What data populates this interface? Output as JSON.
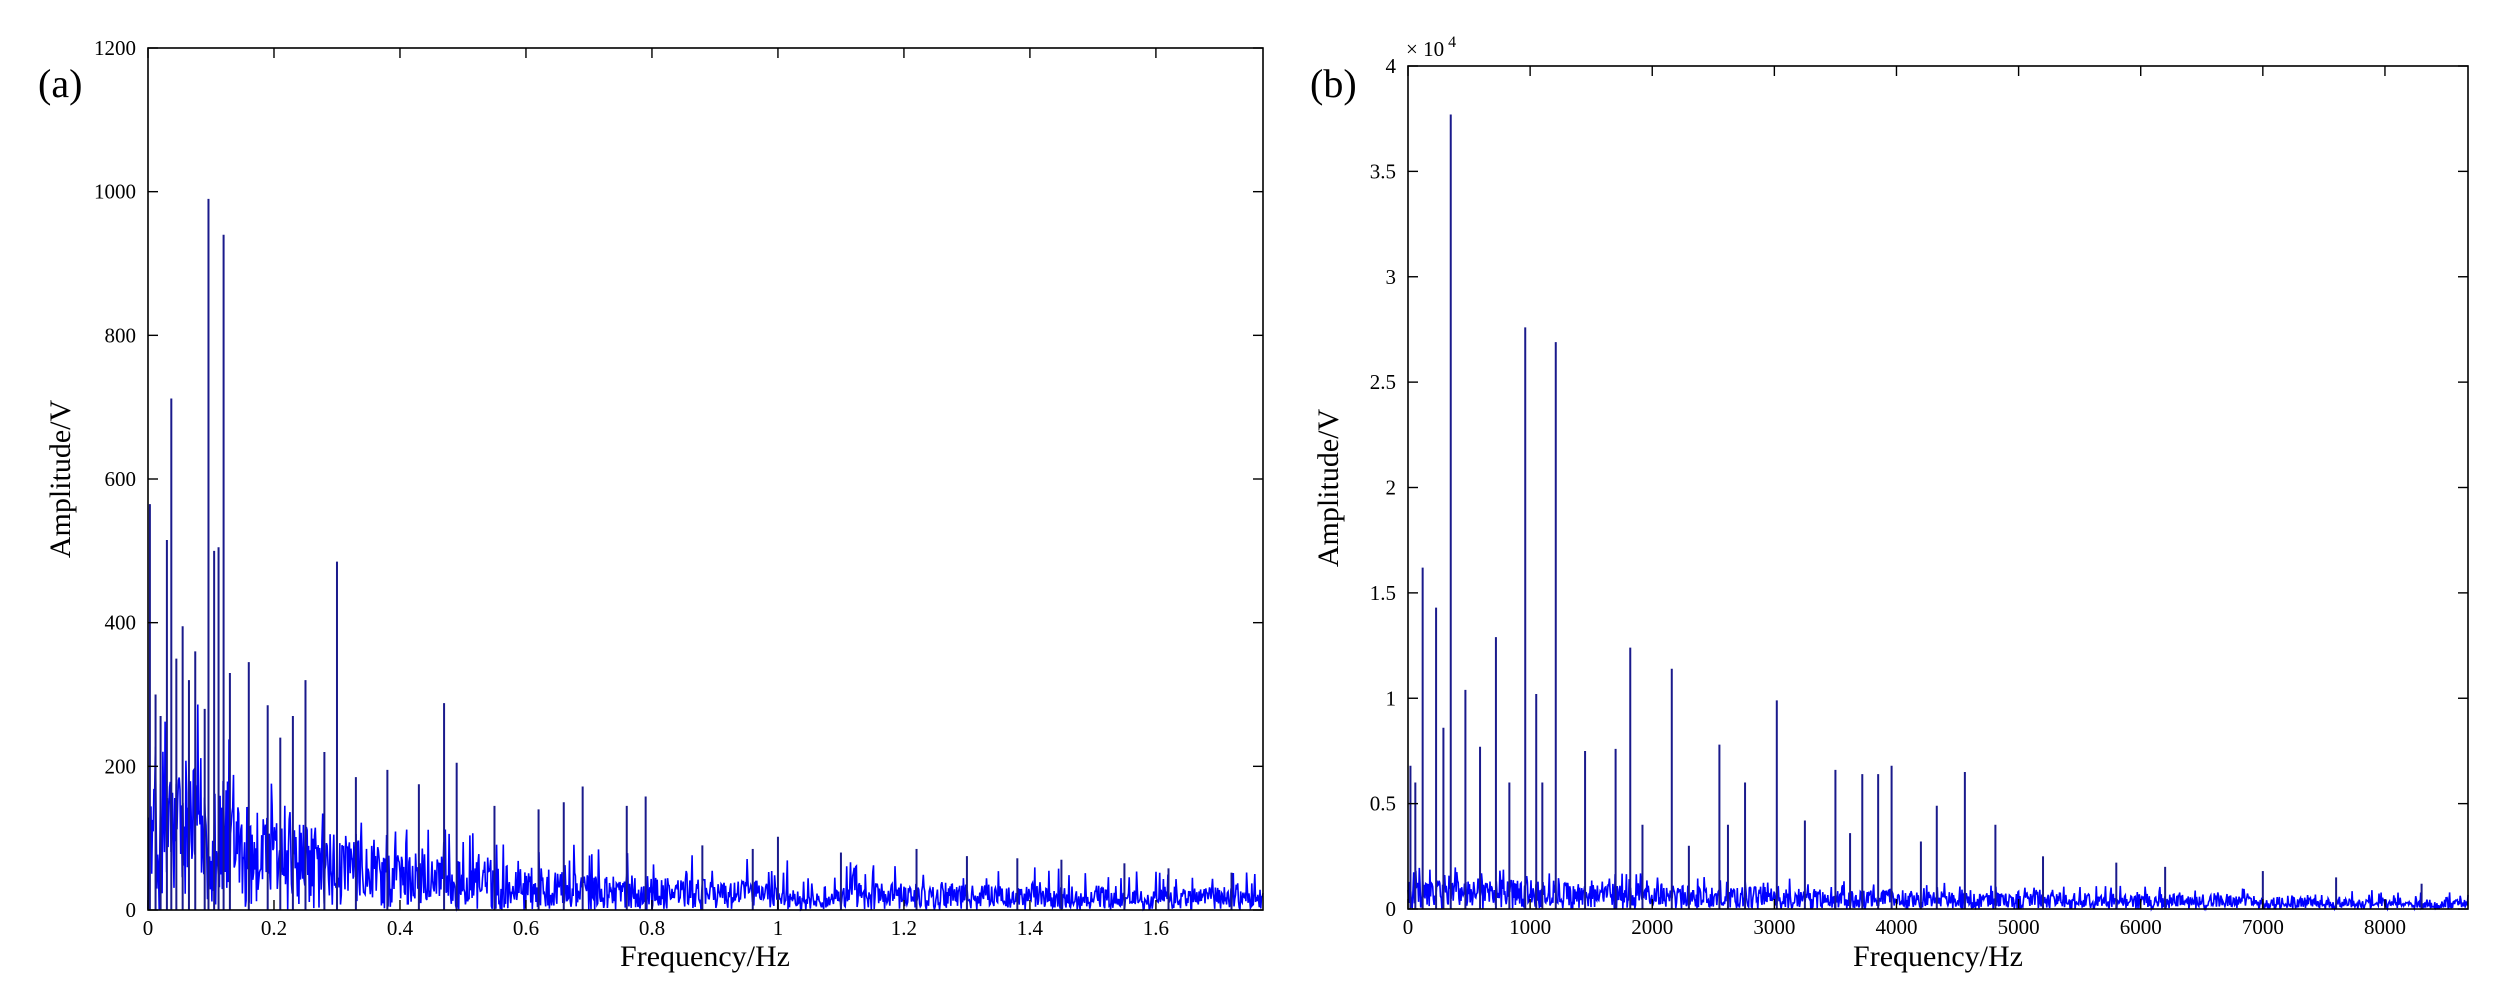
{
  "chart_data": [
    {
      "type": "line",
      "panel_label": "(a)",
      "xlabel": "Frequency/Hz",
      "ylabel": "Amplitude/V",
      "xlim": [
        0,
        1.77
      ],
      "ylim": [
        0,
        1200
      ],
      "xticks": [
        0,
        0.2,
        0.4,
        0.6,
        0.8,
        1,
        1.2,
        1.4,
        1.6
      ],
      "xtick_labels": [
        "0",
        "0.2",
        "0.4",
        "0.6",
        "0.8",
        "1",
        "1.2",
        "1.4",
        "1.6"
      ],
      "yticks": [
        0,
        200,
        400,
        600,
        800,
        1000,
        1200
      ],
      "ytick_labels": [
        "0",
        "200",
        "400",
        "600",
        "800",
        "1000",
        "1200"
      ],
      "grid": false,
      "line_color": "#0000ff",
      "peak_color": "#1a1a8c",
      "envelope": {
        "x": [
          0,
          0.02,
          0.05,
          0.08,
          0.1,
          0.13,
          0.16,
          0.2,
          0.25,
          0.3,
          0.4,
          0.5,
          0.6,
          0.7,
          0.8,
          0.9,
          1.0,
          1.2,
          1.4,
          1.6,
          1.77
        ],
        "mid": [
          110,
          120,
          130,
          140,
          135,
          120,
          105,
          90,
          80,
          70,
          55,
          48,
          40,
          35,
          30,
          28,
          27,
          25,
          23,
          22,
          22
        ],
        "high": [
          260,
          300,
          320,
          330,
          320,
          280,
          230,
          190,
          160,
          140,
          120,
          110,
          100,
          90,
          80,
          75,
          70,
          65,
          60,
          55,
          55
        ]
      },
      "peaks": {
        "x": [
          0.003,
          0.012,
          0.02,
          0.03,
          0.037,
          0.045,
          0.055,
          0.065,
          0.075,
          0.09,
          0.096,
          0.105,
          0.112,
          0.12,
          0.13,
          0.16,
          0.19,
          0.21,
          0.23,
          0.25,
          0.28,
          0.3,
          0.33,
          0.38,
          0.43,
          0.47,
          0.49,
          0.55,
          0.62,
          0.66,
          0.69,
          0.76,
          0.79,
          0.88,
          0.96,
          1.0,
          1.1,
          1.22,
          1.3,
          1.38,
          1.45,
          1.55,
          1.62,
          1.72
        ],
        "y": [
          565,
          300,
          270,
          515,
          712,
          350,
          395,
          320,
          360,
          280,
          990,
          500,
          505,
          940,
          330,
          345,
          285,
          240,
          270,
          320,
          220,
          485,
          185,
          195,
          175,
          288,
          205,
          145,
          140,
          150,
          172,
          145,
          158,
          90,
          85,
          102,
          80,
          85,
          75,
          72,
          70,
          65,
          58,
          52
        ]
      }
    },
    {
      "type": "line",
      "panel_label": "(b)",
      "xlabel": "Frequency/Hz",
      "ylabel": "Amplitude/V",
      "multiplier_label": "× 10",
      "multiplier_exp": "4",
      "xlim": [
        0,
        8680
      ],
      "ylim": [
        0,
        4
      ],
      "xticks": [
        0,
        1000,
        2000,
        3000,
        4000,
        5000,
        6000,
        7000,
        8000
      ],
      "xtick_labels": [
        "0",
        "1000",
        "2000",
        "3000",
        "4000",
        "5000",
        "6000",
        "7000",
        "8000"
      ],
      "yticks": [
        0,
        0.5,
        1,
        1.5,
        2,
        2.5,
        3,
        3.5,
        4
      ],
      "ytick_labels": [
        "0",
        "0.5",
        "1",
        "1.5",
        "2",
        "2.5",
        "3",
        "3.5",
        "4"
      ],
      "grid": false,
      "line_color": "#0000ff",
      "peak_color": "#1a1a8c",
      "envelope": {
        "x": [
          0,
          200,
          500,
          1000,
          1500,
          2000,
          2500,
          3000,
          3500,
          4000,
          5000,
          6000,
          7000,
          8000,
          8680
        ],
        "mid": [
          0.08,
          0.09,
          0.1,
          0.09,
          0.08,
          0.08,
          0.07,
          0.07,
          0.06,
          0.06,
          0.05,
          0.05,
          0.04,
          0.03,
          0.03
        ],
        "high": [
          0.25,
          0.22,
          0.2,
          0.18,
          0.17,
          0.17,
          0.16,
          0.15,
          0.14,
          0.13,
          0.12,
          0.11,
          0.1,
          0.09,
          0.08
        ]
      },
      "peaks": {
        "x": [
          20,
          60,
          120,
          230,
          290,
          350,
          470,
          590,
          720,
          830,
          960,
          1050,
          1100,
          1210,
          1450,
          1700,
          1820,
          1920,
          2160,
          2300,
          2550,
          2620,
          2760,
          3020,
          3250,
          3500,
          3620,
          3720,
          3850,
          3960,
          4200,
          4330,
          4560,
          4810,
          5200,
          5800,
          6200,
          7000,
          7600,
          8300
        ],
        "y": [
          0.68,
          0.6,
          1.62,
          1.43,
          0.86,
          3.77,
          1.04,
          0.77,
          1.29,
          0.6,
          2.76,
          1.02,
          0.6,
          2.69,
          0.75,
          0.76,
          1.24,
          0.4,
          1.14,
          0.3,
          0.78,
          0.4,
          0.6,
          0.99,
          0.42,
          0.66,
          0.36,
          0.64,
          0.64,
          0.68,
          0.32,
          0.49,
          0.65,
          0.4,
          0.25,
          0.22,
          0.2,
          0.18,
          0.15,
          0.12
        ]
      }
    }
  ]
}
